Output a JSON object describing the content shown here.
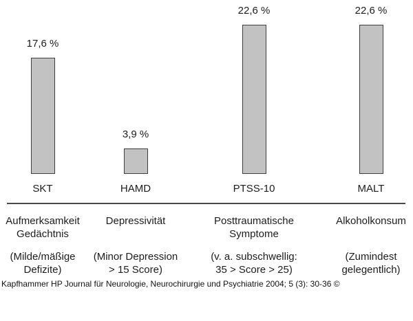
{
  "chart_data": {
    "type": "bar",
    "title": "",
    "categories": [
      "SKT",
      "HAMD",
      "PTSS-10",
      "MALT"
    ],
    "values": [
      17.6,
      3.9,
      22.6,
      22.6
    ],
    "value_labels": [
      "17,6 %",
      "3,9 %",
      "22,6 %",
      "22,6 %"
    ],
    "unit": "%",
    "ylim": [
      0,
      25
    ],
    "grid": false,
    "legend": false,
    "bar_color": "#c2c2c2",
    "bar_border_color": "#3e3e3e",
    "measures": [
      [
        "Aufmerksamkeit",
        "Gedächtnis"
      ],
      [
        "Depressivität"
      ],
      [
        "Posttraumatische",
        "Symptome"
      ],
      [
        "Alkoholkonsum"
      ]
    ],
    "qualifiers": [
      [
        "(Milde/mäßige",
        "Defizite)"
      ],
      [
        "(Minor Depression",
        "> 15 Score)"
      ],
      [
        "(v. a. subschwellig:",
        "35 > Score > 25)"
      ],
      [
        "(Zumindest",
        "gelegentlich)"
      ]
    ]
  },
  "footer": {
    "citation": "Kapfhammer HP Journal für Neurologie, Neurochirurgie und Psychiatrie 2004; 5 (3): 30-36 ©"
  }
}
